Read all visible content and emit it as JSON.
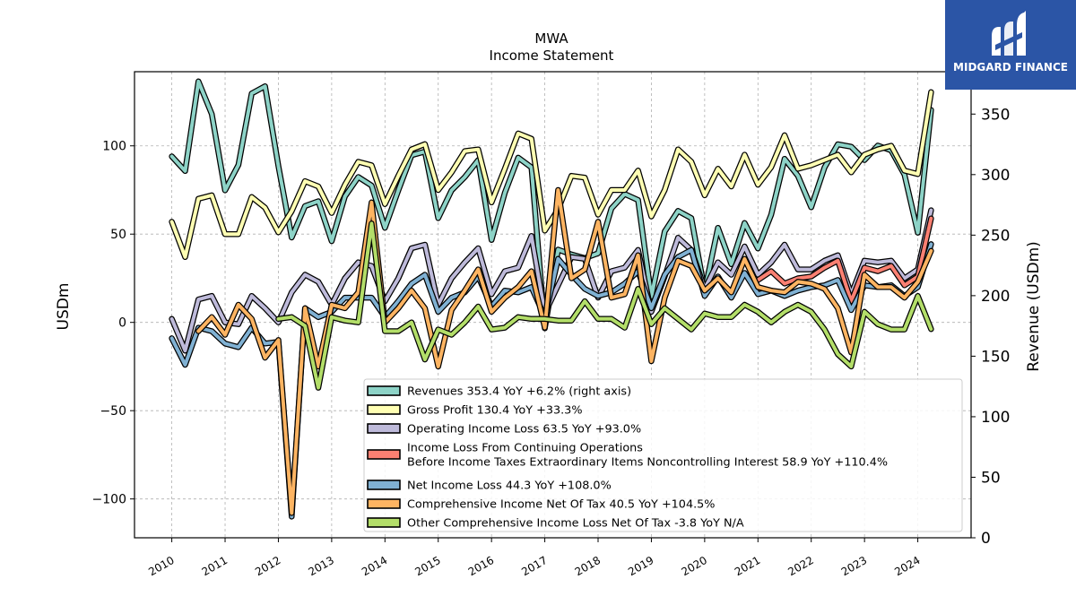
{
  "brand": {
    "name": "MIDGARD FINANCE",
    "color": "#2b55a6"
  },
  "chart_data": {
    "type": "line",
    "title": "MWA",
    "subtitle": "Income Statement",
    "ylabel": "USDm",
    "y2label": "Revenue (USDm)",
    "ylim": [
      -122,
      142
    ],
    "y2lim": [
      0,
      385
    ],
    "yticks": [
      -100,
      -50,
      0,
      50,
      100
    ],
    "y2ticks": [
      0,
      50,
      100,
      150,
      200,
      250,
      300,
      350
    ],
    "xlim": [
      2009.3,
      2025.0
    ],
    "xticks": [
      2010,
      2011,
      2012,
      2013,
      2014,
      2015,
      2016,
      2017,
      2018,
      2019,
      2020,
      2021,
      2022,
      2023,
      2024
    ],
    "xticklabels": [
      "2010",
      "2011",
      "2012",
      "2013",
      "2014",
      "2015",
      "2016",
      "2017",
      "2018",
      "2019",
      "2020",
      "2021",
      "2022",
      "2023",
      "2024"
    ],
    "grid": true,
    "legend_position": "lower-right",
    "series": [
      {
        "name": "Revenues",
        "legend": "Revenues  353.4 YoY +6.2% (right axis)",
        "color": "#8dd3c7",
        "axis": "right",
        "x": [
          2010.0,
          2010.25,
          2010.5,
          2010.75,
          2011.0,
          2011.25,
          2011.5,
          2011.75,
          2012.0,
          2012.25,
          2012.5,
          2012.75,
          2013.0,
          2013.25,
          2013.5,
          2013.75,
          2014.0,
          2014.25,
          2014.5,
          2014.75,
          2015.0,
          2015.25,
          2015.5,
          2015.75,
          2016.0,
          2016.25,
          2016.5,
          2016.75,
          2017.0,
          2017.25,
          2017.5,
          2017.75,
          2018.0,
          2018.25,
          2018.5,
          2018.75,
          2019.0,
          2019.25,
          2019.5,
          2019.75,
          2020.0,
          2020.25,
          2020.5,
          2020.75,
          2021.0,
          2021.25,
          2021.5,
          2021.75,
          2022.0,
          2022.25,
          2022.5,
          2022.75,
          2023.0,
          2023.25,
          2023.5,
          2023.75,
          2024.0,
          2024.25
        ],
        "y": [
          315,
          303,
          377,
          350,
          287,
          308,
          367,
          373,
          307,
          248,
          274,
          278,
          245,
          282,
          298,
          291,
          256,
          287,
          316,
          319,
          264,
          287,
          298,
          312,
          246,
          285,
          314,
          306,
          173,
          238,
          234,
          231,
          235,
          272,
          284,
          279,
          199,
          253,
          270,
          264,
          204,
          256,
          226,
          260,
          239,
          267,
          313,
          299,
          273,
          306,
          325,
          323,
          312,
          324,
          320,
          300,
          252,
          353.4
        ]
      },
      {
        "name": "Gross Profit",
        "legend": "Gross Profit  130.4 YoY +33.3%",
        "color": "#ffffb3",
        "axis": "left",
        "x": [
          2010.0,
          2010.25,
          2010.5,
          2010.75,
          2011.0,
          2011.25,
          2011.5,
          2011.75,
          2012.0,
          2012.25,
          2012.5,
          2012.75,
          2013.0,
          2013.25,
          2013.5,
          2013.75,
          2014.0,
          2014.25,
          2014.5,
          2014.75,
          2015.0,
          2015.25,
          2015.5,
          2015.75,
          2016.0,
          2016.25,
          2016.5,
          2016.75,
          2017.0,
          2017.25,
          2017.5,
          2017.75,
          2018.0,
          2018.25,
          2018.5,
          2018.75,
          2019.0,
          2019.25,
          2019.5,
          2019.75,
          2020.0,
          2020.25,
          2020.5,
          2020.75,
          2021.0,
          2021.25,
          2021.5,
          2021.75,
          2022.0,
          2022.25,
          2022.5,
          2022.75,
          2023.0,
          2023.25,
          2023.5,
          2023.75,
          2024.0,
          2024.25
        ],
        "y": [
          57,
          37,
          70,
          72,
          50,
          50,
          71,
          65,
          51,
          63,
          80,
          77,
          62,
          78,
          91,
          89,
          67,
          83,
          98,
          101,
          75,
          85,
          97,
          98,
          68,
          87,
          107,
          104,
          52,
          64,
          83,
          82,
          61,
          75,
          75,
          86,
          60,
          75,
          98,
          91,
          72,
          87,
          77,
          95,
          78,
          88,
          106,
          87,
          89,
          92,
          95,
          85,
          95,
          98,
          100,
          86,
          84,
          130.4
        ]
      },
      {
        "name": "Operating Income Loss",
        "legend": "Operating Income Loss  63.5 YoY +93.0%",
        "color": "#bebada",
        "axis": "left",
        "x": [
          2010.0,
          2010.25,
          2010.5,
          2010.75,
          2011.0,
          2011.25,
          2011.5,
          2011.75,
          2012.0,
          2012.25,
          2012.5,
          2012.75,
          2013.0,
          2013.25,
          2013.5,
          2013.75,
          2014.0,
          2014.25,
          2014.5,
          2014.75,
          2015.0,
          2015.25,
          2015.5,
          2015.75,
          2016.0,
          2016.25,
          2016.5,
          2016.75,
          2017.0,
          2017.25,
          2017.5,
          2017.75,
          2018.0,
          2018.25,
          2018.5,
          2018.75,
          2019.0,
          2019.25,
          2019.5,
          2019.75,
          2020.0,
          2020.25,
          2020.5,
          2020.75,
          2021.0,
          2021.25,
          2021.5,
          2021.75,
          2022.0,
          2022.25,
          2022.5,
          2022.75,
          2023.0,
          2023.25,
          2023.5,
          2023.75,
          2024.0,
          2024.25
        ],
        "y": [
          2,
          -16,
          13,
          15,
          0,
          -1,
          15,
          8,
          0,
          17,
          27,
          23,
          10,
          25,
          34,
          32,
          12,
          25,
          42,
          44,
          10,
          25,
          34,
          42,
          16,
          29,
          31,
          49,
          5,
          21,
          37,
          36,
          14,
          29,
          31,
          41,
          6,
          26,
          48,
          41,
          19,
          34,
          27,
          43,
          27,
          34,
          44,
          30,
          30,
          35,
          38,
          16,
          35,
          34,
          35,
          25,
          30,
          63.5
        ]
      },
      {
        "name": "Income Loss From Continuing Operations Before Income Taxes Extraordinary Items Noncontrolling Interest",
        "legend": "Income Loss From Continuing Operations",
        "legend2": "Before Income Taxes Extraordinary Items Noncontrolling Interest  58.9 YoY +110.4%",
        "color": "#fb8072",
        "axis": "left",
        "x": [
          2021.0,
          2021.25,
          2021.5,
          2021.75,
          2022.0,
          2022.25,
          2022.5,
          2022.75,
          2023.0,
          2023.25,
          2023.5,
          2023.75,
          2024.0,
          2024.25
        ],
        "y": [
          24,
          29,
          22,
          25,
          26,
          31,
          35,
          12,
          31,
          29,
          32,
          21,
          26,
          58.9
        ]
      },
      {
        "name": "Net Income Loss",
        "legend": "Net Income Loss  44.3 YoY +108.0%",
        "color": "#80b1d3",
        "axis": "left",
        "x": [
          2010.0,
          2010.25,
          2010.5,
          2010.75,
          2011.0,
          2011.25,
          2011.5,
          2011.75,
          2012.0,
          2012.25,
          2012.5,
          2012.75,
          2013.0,
          2013.25,
          2013.5,
          2013.75,
          2014.0,
          2014.25,
          2014.5,
          2014.75,
          2015.0,
          2015.25,
          2015.5,
          2015.75,
          2016.0,
          2016.25,
          2016.5,
          2016.75,
          2017.0,
          2017.25,
          2017.5,
          2017.75,
          2018.0,
          2018.25,
          2018.5,
          2018.75,
          2019.0,
          2019.25,
          2019.5,
          2019.75,
          2020.0,
          2020.25,
          2020.5,
          2020.75,
          2021.0,
          2021.25,
          2021.5,
          2021.75,
          2022.0,
          2022.25,
          2022.5,
          2022.75,
          2023.0,
          2023.25,
          2023.5,
          2023.75,
          2024.0,
          2024.25
        ],
        "y": [
          -9,
          -24,
          -3,
          -5,
          -12,
          -14,
          -3,
          -12,
          -11,
          -110,
          8,
          3,
          6,
          14,
          14,
          14,
          3,
          12,
          22,
          27,
          6,
          14,
          17,
          26,
          9,
          18,
          17,
          20,
          3,
          36,
          27,
          19,
          15,
          17,
          22,
          29,
          8,
          27,
          37,
          41,
          15,
          26,
          14,
          28,
          16,
          18,
          15,
          18,
          20,
          21,
          24,
          7,
          21,
          20,
          21,
          15,
          20,
          44.3
        ]
      },
      {
        "name": "Comprehensive Income Net Of Tax",
        "legend": "Comprehensive Income Net Of Tax  40.5 YoY +104.5%",
        "color": "#fdb462",
        "axis": "left",
        "x": [
          2010.5,
          2010.75,
          2011.0,
          2011.25,
          2011.5,
          2011.75,
          2012.0,
          2012.25,
          2012.5,
          2012.75,
          2013.0,
          2013.25,
          2013.5,
          2013.75,
          2014.0,
          2014.25,
          2014.5,
          2014.75,
          2015.0,
          2015.25,
          2015.5,
          2015.75,
          2016.0,
          2016.25,
          2016.5,
          2016.75,
          2017.0,
          2017.25,
          2017.5,
          2017.75,
          2018.0,
          2018.25,
          2018.5,
          2018.75,
          2019.0,
          2019.25,
          2019.5,
          2019.75,
          2020.0,
          2020.25,
          2020.5,
          2020.75,
          2021.0,
          2021.25,
          2021.5,
          2021.75,
          2022.0,
          2022.25,
          2022.5,
          2022.75,
          2023.0,
          2023.25,
          2023.5,
          2023.75,
          2024.0,
          2024.25
        ],
        "y": [
          -5,
          3,
          -7,
          10,
          2,
          -20,
          -10,
          -108,
          8,
          -25,
          10,
          8,
          17,
          68,
          0,
          8,
          18,
          8,
          -25,
          7,
          18,
          30,
          6,
          14,
          20,
          29,
          -3,
          75,
          25,
          30,
          57,
          14,
          16,
          38,
          -22,
          14,
          35,
          32,
          18,
          25,
          17,
          36,
          20,
          18,
          17,
          23,
          22,
          19,
          8,
          -17,
          27,
          20,
          20,
          14,
          23,
          40.5
        ]
      },
      {
        "name": "Other Comprehensive Income Loss Net Of Tax",
        "legend": "Other Comprehensive Income Loss Net Of Tax  -3.8 YoY N/A",
        "color": "#b3de69",
        "axis": "left",
        "x": [
          2012.0,
          2012.25,
          2012.5,
          2012.75,
          2013.0,
          2013.25,
          2013.5,
          2013.75,
          2014.0,
          2014.25,
          2014.5,
          2014.75,
          2015.0,
          2015.25,
          2015.5,
          2015.75,
          2016.0,
          2016.25,
          2016.5,
          2016.75,
          2017.0,
          2017.25,
          2017.5,
          2017.75,
          2018.0,
          2018.25,
          2018.5,
          2018.75,
          2019.0,
          2019.25,
          2019.5,
          2019.75,
          2020.0,
          2020.25,
          2020.5,
          2020.75,
          2021.0,
          2021.25,
          2021.5,
          2021.75,
          2022.0,
          2022.25,
          2022.5,
          2022.75,
          2023.0,
          2023.25,
          2023.5,
          2023.75,
          2024.0,
          2024.25
        ],
        "y": [
          2,
          3,
          -2,
          -37,
          3,
          1,
          0,
          56,
          -5,
          -5,
          0,
          -21,
          -4,
          -7,
          0,
          9,
          -4,
          -3,
          3,
          2,
          2,
          1,
          1,
          12,
          2,
          2,
          -3,
          19,
          -1,
          8,
          2,
          -4,
          5,
          3,
          3,
          10,
          6,
          0,
          6,
          10,
          6,
          -4,
          -18,
          -25,
          6,
          -1,
          -4,
          -4,
          15,
          -3.8
        ]
      }
    ]
  }
}
